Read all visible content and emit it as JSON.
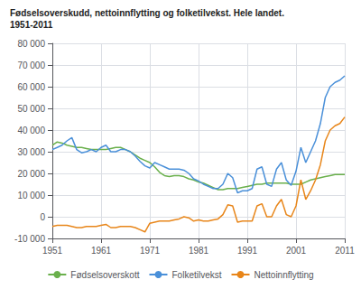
{
  "chart_data": {
    "type": "line",
    "title": "Fødselsoverskudd, nettoinnflytting og folketilvekst. Hele landet.",
    "subtitle": "1951-2011",
    "x": [
      1951,
      1952,
      1953,
      1954,
      1955,
      1956,
      1957,
      1958,
      1959,
      1960,
      1961,
      1962,
      1963,
      1964,
      1965,
      1966,
      1967,
      1968,
      1969,
      1970,
      1971,
      1972,
      1973,
      1974,
      1975,
      1976,
      1977,
      1978,
      1979,
      1980,
      1981,
      1982,
      1983,
      1984,
      1985,
      1986,
      1987,
      1988,
      1989,
      1990,
      1991,
      1992,
      1993,
      1994,
      1995,
      1996,
      1997,
      1998,
      1999,
      2000,
      2001,
      2002,
      2003,
      2004,
      2005,
      2006,
      2007,
      2008,
      2009,
      2010,
      2011
    ],
    "series": [
      {
        "name": "Fødselsoverskott",
        "color": "#6ab04c",
        "values": [
          33000,
          34500,
          34000,
          33000,
          32500,
          32000,
          32000,
          31500,
          31000,
          31000,
          31000,
          31000,
          31500,
          32000,
          32000,
          31000,
          30000,
          28500,
          27000,
          26000,
          25000,
          23000,
          20500,
          19000,
          18500,
          19000,
          19000,
          18500,
          17500,
          17000,
          16000,
          15500,
          14500,
          13500,
          12500,
          12500,
          13000,
          13000,
          13000,
          13500,
          14000,
          14500,
          15000,
          15000,
          15500,
          15500,
          15500,
          15500,
          15500,
          15000,
          15000,
          15000,
          16000,
          17000,
          17500,
          18000,
          18500,
          19000,
          19500,
          19500,
          19500
        ]
      },
      {
        "name": "Folketilvekst",
        "color": "#4a90d9",
        "values": [
          31000,
          32000,
          33000,
          35000,
          36500,
          31000,
          29500,
          30000,
          31000,
          30000,
          32000,
          33000,
          30000,
          30000,
          31000,
          31000,
          30000,
          28000,
          25500,
          23500,
          22500,
          25000,
          24000,
          23000,
          22000,
          22000,
          22000,
          21500,
          20000,
          17500,
          16500,
          15000,
          14000,
          13000,
          13000,
          15000,
          20000,
          18000,
          11000,
          12000,
          12000,
          13000,
          22000,
          23000,
          15000,
          14000,
          22000,
          25000,
          17000,
          14500,
          21000,
          32000,
          25000,
          30000,
          35000,
          43000,
          55000,
          60000,
          62000,
          63000,
          65000
        ]
      },
      {
        "name": "Nettoinnflytting",
        "color": "#e8861a",
        "values": [
          -4500,
          -4000,
          -4000,
          -4000,
          -4500,
          -5000,
          -5000,
          -4500,
          -4500,
          -4500,
          -4000,
          -3500,
          -5000,
          -5000,
          -4500,
          -4500,
          -4500,
          -5000,
          -6000,
          -7000,
          -3000,
          -2500,
          -2000,
          -2000,
          -2000,
          -1500,
          -1000,
          0,
          -500,
          -2000,
          -1500,
          -2000,
          -2000,
          -1500,
          -1000,
          1000,
          5500,
          5000,
          -2500,
          -2000,
          -2000,
          -2000,
          5000,
          6000,
          0,
          0,
          5000,
          8000,
          1000,
          0,
          5000,
          17000,
          8000,
          12000,
          17000,
          24000,
          35000,
          40000,
          42000,
          43000,
          46000
        ]
      }
    ],
    "xlim": [
      1951,
      2011
    ],
    "xticks": [
      1951,
      1961,
      1971,
      1981,
      1991,
      2001,
      2011
    ],
    "ylim": [
      -10000,
      80000
    ],
    "yticks": [
      {
        "value": -10000,
        "label": "-10 000"
      },
      0,
      {
        "value": 10000,
        "label": "10 000"
      },
      {
        "value": 20000,
        "label": "20 000"
      },
      {
        "value": 30000,
        "label": "30 000"
      },
      {
        "value": 40000,
        "label": "40 000"
      },
      {
        "value": 50000,
        "label": "50 000"
      },
      {
        "value": 60000,
        "label": "60 000"
      },
      {
        "value": 70000,
        "label": "70 000"
      },
      {
        "value": 80000,
        "label": "80 000"
      }
    ],
    "grid": true,
    "legend": "bottom"
  }
}
